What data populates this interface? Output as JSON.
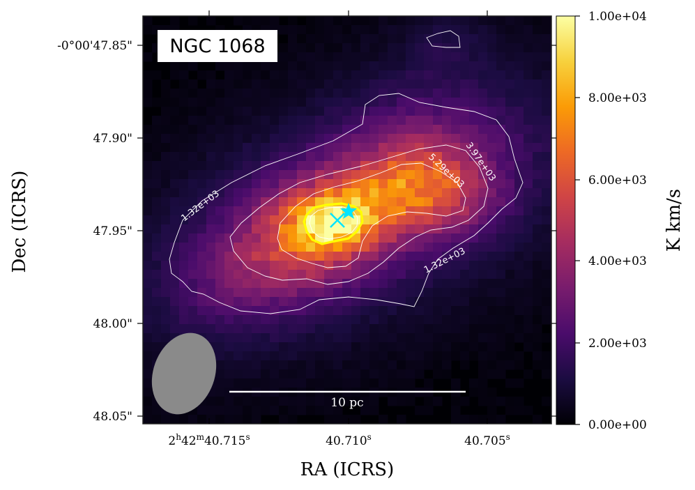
{
  "chart_data": {
    "type": "heatmap",
    "object_label": "NGC 1068",
    "xlabel": "RA (ICRS)",
    "ylabel": "Dec (ICRS)",
    "x_ticks": [
      {
        "main": "2",
        "sup1": "h",
        "mid": "42",
        "sup2": "m",
        "sec": "40.715",
        "sup3": "s"
      },
      {
        "main": "",
        "sup1": "",
        "mid": "",
        "sup2": "",
        "sec": "40.710",
        "sup3": "s"
      },
      {
        "main": "",
        "sup1": "",
        "mid": "",
        "sup2": "",
        "sec": "40.705",
        "sup3": "s"
      }
    ],
    "y_ticks": [
      "-0°00'47.85\"",
      "47.90\"",
      "47.95\"",
      "48.00\"",
      "48.05\""
    ],
    "colorbar": {
      "label": "K km/s",
      "min": 0,
      "max": 10000,
      "ticks": [
        "0.00e+00",
        "2.00e+03",
        "4.00e+03",
        "6.00e+03",
        "8.00e+03",
        "1.00e+04"
      ],
      "colormap": [
        "#000004",
        "#1b0c41",
        "#4a0c6b",
        "#781c6d",
        "#a52c60",
        "#cf4446",
        "#ed6925",
        "#fb9b06",
        "#f7d13d",
        "#fcffa4"
      ]
    },
    "contours": [
      {
        "level": 1320,
        "label": "1.32e+03",
        "color": "#ffffff"
      },
      {
        "level": 3970,
        "label": "3.97e+03",
        "color": "#ffffff"
      },
      {
        "level": 5290,
        "label": "5.29e+03",
        "color": "#ffffff"
      },
      {
        "level": 7500,
        "label": "",
        "color": "#ffff00"
      }
    ],
    "markers": [
      {
        "symbol": "x",
        "color": "#00e5ff",
        "name": "x-marker"
      },
      {
        "symbol": "star",
        "color": "#00e5ff",
        "name": "star-marker"
      }
    ],
    "scalebar_label": "10 pc",
    "beam_color": "#8a8a8a",
    "peak_value": 9000
  }
}
